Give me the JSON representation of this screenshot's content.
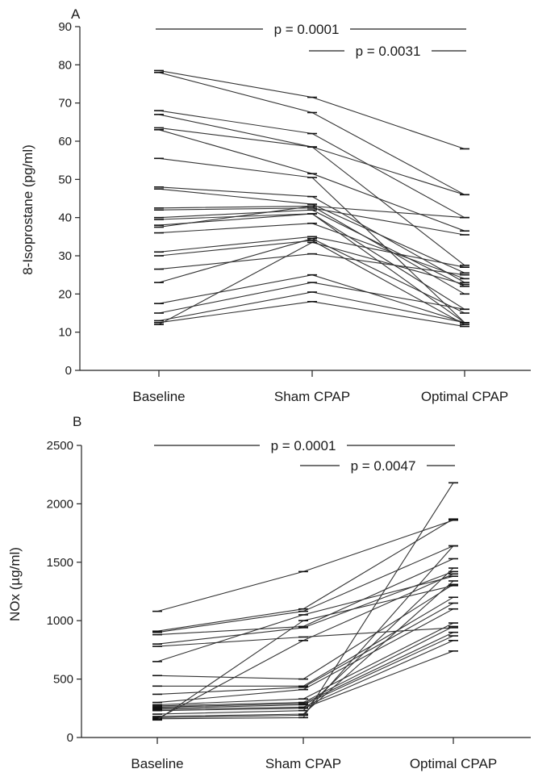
{
  "chart_data": [
    {
      "type": "line",
      "panel": "A",
      "ylabel": "8-Isoprostane (pg/ml)",
      "xlabel": "",
      "categories": [
        "Baseline",
        "Sham CPAP",
        "Optimal CPAP"
      ],
      "ylim": [
        0,
        90
      ],
      "yticks": [
        0,
        10,
        20,
        30,
        40,
        50,
        60,
        70,
        80,
        90
      ],
      "yticklabels": [
        "0",
        "10",
        "20",
        "30",
        "40",
        "50",
        "60",
        "70",
        "80",
        "90"
      ],
      "annotations": [
        {
          "text": "p = 0.0001",
          "from": "Baseline",
          "to": "Optimal CPAP"
        },
        {
          "text": "p = 0.0031",
          "from": "Sham CPAP",
          "to": "Optimal CPAP"
        }
      ],
      "series": [
        {
          "values": [
            78.5,
            71.5,
            58
          ]
        },
        {
          "values": [
            78,
            67.5,
            46
          ]
        },
        {
          "values": [
            68,
            62,
            40
          ]
        },
        {
          "values": [
            67,
            58.5,
            46
          ]
        },
        {
          "values": [
            63.5,
            58.5,
            27.5
          ]
        },
        {
          "values": [
            63,
            51.5,
            36.5
          ]
        },
        {
          "values": [
            55.5,
            50.5,
            12.5
          ]
        },
        {
          "values": [
            48,
            45.5,
            23
          ]
        },
        {
          "values": [
            47.5,
            43.5,
            25.5
          ]
        },
        {
          "values": [
            42.5,
            43,
            40
          ]
        },
        {
          "values": [
            42,
            42.5,
            35.5
          ]
        },
        {
          "values": [
            40,
            42,
            22
          ]
        },
        {
          "values": [
            39.5,
            41,
            12.5
          ]
        },
        {
          "values": [
            38,
            41,
            16
          ]
        },
        {
          "values": [
            37.5,
            43,
            20
          ]
        },
        {
          "values": [
            36,
            38.5,
            24
          ]
        },
        {
          "values": [
            31,
            35,
            27
          ]
        },
        {
          "values": [
            30,
            34,
            12
          ]
        },
        {
          "values": [
            26.5,
            30.5,
            25
          ]
        },
        {
          "values": [
            23,
            34.5,
            15
          ]
        },
        {
          "values": [
            17.5,
            25,
            12.5
          ]
        },
        {
          "values": [
            15,
            23,
            16
          ]
        },
        {
          "values": [
            13,
            20.5,
            12.5
          ]
        },
        {
          "values": [
            12.5,
            18,
            11.5
          ]
        },
        {
          "values": [
            12,
            33.5,
            22.5
          ]
        }
      ]
    },
    {
      "type": "line",
      "panel": "B",
      "ylabel": "NOx (µg/ml)",
      "xlabel": "",
      "categories": [
        "Baseline",
        "Sham CPAP",
        "Optimal CPAP"
      ],
      "ylim": [
        0,
        2500
      ],
      "yticks": [
        0,
        500,
        1000,
        1500,
        2000,
        2500
      ],
      "yticklabels": [
        "0",
        "500",
        "1000",
        "1500",
        "2000",
        "2500"
      ],
      "annotations": [
        {
          "text": "p = 0.0001",
          "from": "Baseline",
          "to": "Optimal CPAP"
        },
        {
          "text": "p = 0.0047",
          "from": "Sham CPAP",
          "to": "Optimal CPAP"
        }
      ],
      "series": [
        {
          "values": [
            1080,
            1420,
            1860
          ]
        },
        {
          "values": [
            910,
            1100,
            1870
          ]
        },
        {
          "values": [
            900,
            1080,
            1640
          ]
        },
        {
          "values": [
            880,
            950,
            1530
          ]
        },
        {
          "values": [
            800,
            940,
            1420
          ]
        },
        {
          "values": [
            780,
            860,
            940
          ]
        },
        {
          "values": [
            650,
            1050,
            1380
          ]
        },
        {
          "values": [
            530,
            500,
            1310
          ]
        },
        {
          "values": [
            440,
            440,
            1200
          ]
        },
        {
          "values": [
            370,
            430,
            1150
          ]
        },
        {
          "values": [
            300,
            410,
            1100
          ]
        },
        {
          "values": [
            280,
            330,
            980
          ]
        },
        {
          "values": [
            270,
            300,
            950
          ]
        },
        {
          "values": [
            260,
            290,
            900
          ]
        },
        {
          "values": [
            250,
            280,
            870
          ]
        },
        {
          "values": [
            240,
            260,
            830
          ]
        },
        {
          "values": [
            230,
            250,
            740
          ]
        },
        {
          "values": [
            200,
            230,
            1450
          ]
        },
        {
          "values": [
            180,
            200,
            1340
          ]
        },
        {
          "values": [
            170,
            190,
            1640
          ]
        },
        {
          "values": [
            160,
            170,
            2180
          ]
        },
        {
          "values": [
            160,
            830,
            1400
          ]
        },
        {
          "values": [
            150,
            1000,
            1300
          ]
        }
      ]
    }
  ]
}
